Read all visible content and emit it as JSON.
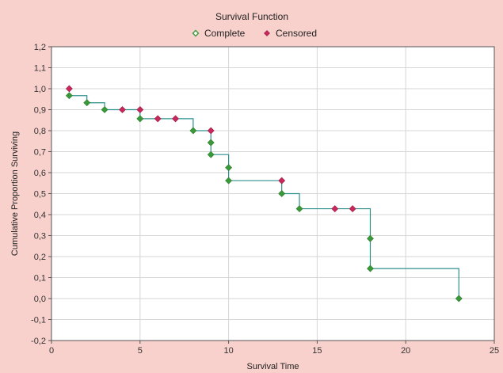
{
  "chart_data": {
    "type": "scatter",
    "title": "Survival Function",
    "xlabel": "Survival Time",
    "ylabel": "Cumulative Proportion Surviving",
    "xlim": [
      0,
      25
    ],
    "ylim": [
      -0.2,
      1.2
    ],
    "x_ticks": [
      0,
      5,
      10,
      15,
      20,
      25
    ],
    "x_tick_labels": [
      "0",
      "5",
      "10",
      "15",
      "20",
      "25"
    ],
    "y_ticks": [
      -0.2,
      -0.1,
      0.0,
      0.1,
      0.2,
      0.3,
      0.4,
      0.5,
      0.6,
      0.7,
      0.8,
      0.9,
      1.0,
      1.1,
      1.2
    ],
    "y_tick_labels": [
      "-0,2",
      "-0,1",
      "0,0",
      "0,1",
      "0,2",
      "0,3",
      "0,4",
      "0,5",
      "0,6",
      "0,7",
      "0,8",
      "0,9",
      "1,0",
      "1,1",
      "1,2"
    ],
    "grid": true,
    "legend_position": "top-center",
    "colors": {
      "complete": "#3a9a3a",
      "censored": "#c8285a",
      "step_line": "#2f8f8f",
      "background": "#f8d0cc",
      "plot_background": "#ffffff"
    },
    "series": [
      {
        "name": "Complete",
        "marker": "diamond",
        "x": [
          1,
          2,
          3,
          5,
          8,
          9,
          9,
          10,
          10,
          13,
          14,
          18,
          18,
          23
        ],
        "y": [
          0.967,
          0.933,
          0.9,
          0.857,
          0.8,
          0.743,
          0.686,
          0.624,
          0.562,
          0.5,
          0.428,
          0.286,
          0.143,
          0.0
        ]
      },
      {
        "name": "Censored",
        "marker": "diamond",
        "x": [
          1,
          4,
          5,
          6,
          7,
          9,
          13,
          16,
          17
        ],
        "y": [
          1.0,
          0.9,
          0.9,
          0.857,
          0.857,
          0.8,
          0.562,
          0.428,
          0.428
        ]
      }
    ],
    "step_function": {
      "x": [
        0.9,
        1,
        2,
        3,
        5,
        8,
        9,
        10,
        13,
        14,
        18,
        23
      ],
      "y": [
        0.967,
        0.967,
        0.933,
        0.9,
        0.857,
        0.8,
        0.686,
        0.562,
        0.5,
        0.428,
        0.143,
        0.0
      ]
    }
  }
}
